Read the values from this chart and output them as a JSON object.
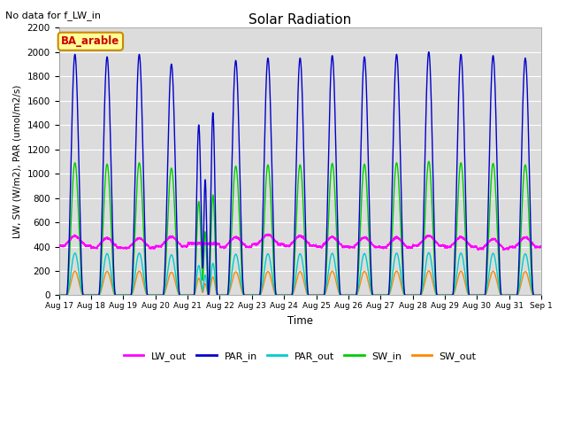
{
  "title": "Solar Radiation",
  "suptitle": "No data for f_LW_in",
  "xlabel": "Time",
  "ylabel": "LW, SW (W/m2), PAR (umol/m2/s)",
  "annotation": "BA_arable",
  "ylim": [
    0,
    2200
  ],
  "series": {
    "LW_out": {
      "color": "#ff00ff",
      "lw": 1.0
    },
    "PAR_in": {
      "color": "#0000cc",
      "lw": 1.0
    },
    "PAR_out": {
      "color": "#00cccc",
      "lw": 1.0
    },
    "SW_in": {
      "color": "#00cc00",
      "lw": 1.0
    },
    "SW_out": {
      "color": "#ff8800",
      "lw": 1.0
    }
  },
  "num_days": 15,
  "start_day": 17,
  "axis_bg": "#dcdcdc",
  "grid_color": "#ffffff"
}
